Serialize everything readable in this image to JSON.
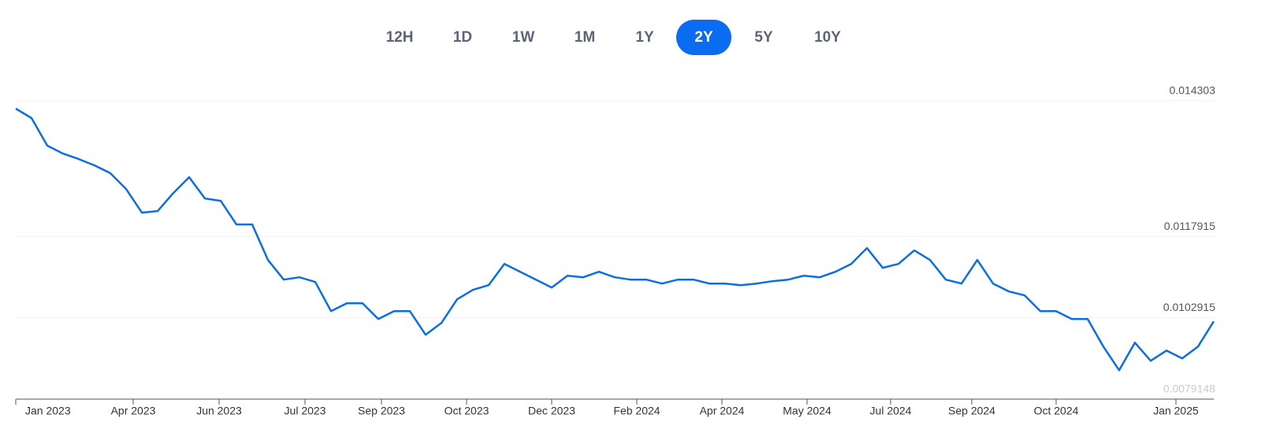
{
  "range_buttons": {
    "labels": [
      "12H",
      "1D",
      "1W",
      "1M",
      "1Y",
      "2Y",
      "5Y",
      "10Y"
    ],
    "active": 5
  },
  "chart_data": {
    "type": "line",
    "color": "#0b6fe0",
    "grid": true,
    "annotation": "0.0079148",
    "xlim": [
      0,
      76
    ],
    "xticks": [
      {
        "value": 0,
        "label": "Jan 2023"
      },
      {
        "value": 7.45,
        "label": "Apr 2023"
      },
      {
        "value": 12.9,
        "label": "Jun 2023"
      },
      {
        "value": 18.35,
        "label": "Jul 2023"
      },
      {
        "value": 23.2,
        "label": "Sep 2023"
      },
      {
        "value": 28.6,
        "label": "Oct 2023"
      },
      {
        "value": 34,
        "label": "Dec 2023"
      },
      {
        "value": 39.4,
        "label": "Feb 2024"
      },
      {
        "value": 44.8,
        "label": "Apr 2024"
      },
      {
        "value": 50.2,
        "label": "May 2024"
      },
      {
        "value": 55.5,
        "label": "Jul 2024"
      },
      {
        "value": 60.65,
        "label": "Sep 2024"
      },
      {
        "value": 66,
        "label": "Oct 2024"
      },
      {
        "value": 73.6,
        "label": "Jan 2025"
      }
    ],
    "ylim": [
      0.00878,
      0.015
    ],
    "yticks": [
      0.014303,
      0.0117915,
      0.0102915
    ],
    "values": [
      0.014155,
      0.01398,
      0.01347,
      0.013324,
      0.013222,
      0.013105,
      0.01296,
      0.012668,
      0.012231,
      0.01226,
      0.012595,
      0.012887,
      0.012493,
      0.012449,
      0.012012,
      0.012012,
      0.011356,
      0.010991,
      0.011035,
      0.010948,
      0.010408,
      0.010554,
      0.010554,
      0.010262,
      0.010408,
      0.010408,
      0.009971,
      0.010189,
      0.010627,
      0.010802,
      0.010889,
      0.011283,
      0.011137,
      0.010991,
      0.010846,
      0.011064,
      0.011035,
      0.011137,
      0.011035,
      0.010991,
      0.010991,
      0.010918,
      0.010991,
      0.010991,
      0.010918,
      0.010918,
      0.010889,
      0.010918,
      0.010962,
      0.010991,
      0.011064,
      0.011035,
      0.011137,
      0.011283,
      0.011575,
      0.01121,
      0.011283,
      0.011531,
      0.011356,
      0.010991,
      0.010918,
      0.011356,
      0.010918,
      0.010773,
      0.0107,
      0.010408,
      0.010408,
      0.010262,
      0.010262,
      0.009752,
      0.009314,
      0.009825,
      0.00949,
      0.009679,
      0.009533,
      0.009752,
      0.010219
    ]
  }
}
